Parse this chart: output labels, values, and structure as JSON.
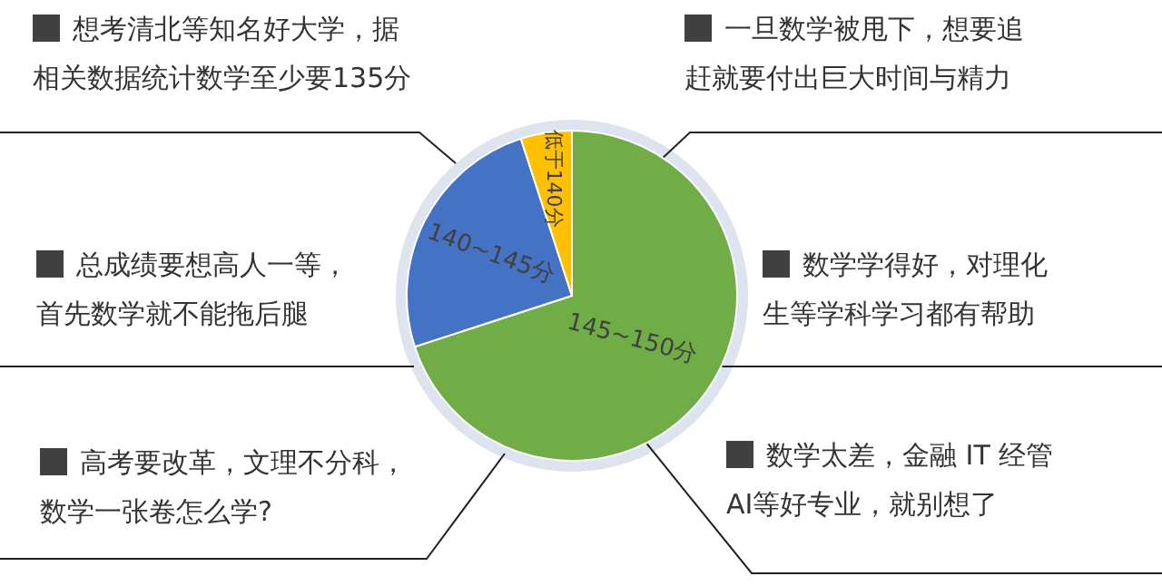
{
  "chart_data": {
    "type": "pie",
    "categories": [
      "145~150分",
      "140~145分",
      "低于140分"
    ],
    "values": [
      70,
      25,
      5
    ],
    "colors": [
      "#70ad47",
      "#4472c4",
      "#ffc000"
    ],
    "legend": false,
    "annotations": [
      "想考清北等知名好大学，据相关数据统计数学至少要135分",
      "一旦数学被甩下，想要追赶就要付出巨大时间与精力",
      "总成绩要想高人一等，首先数学就不能拖后腿",
      "数学学得好，对理化生等学科学习都有帮助",
      "高考要改革，文理不分科，数学一张卷怎么学?",
      "数学太差，金融 IT 经管AI等好专业，就别想了"
    ]
  }
}
